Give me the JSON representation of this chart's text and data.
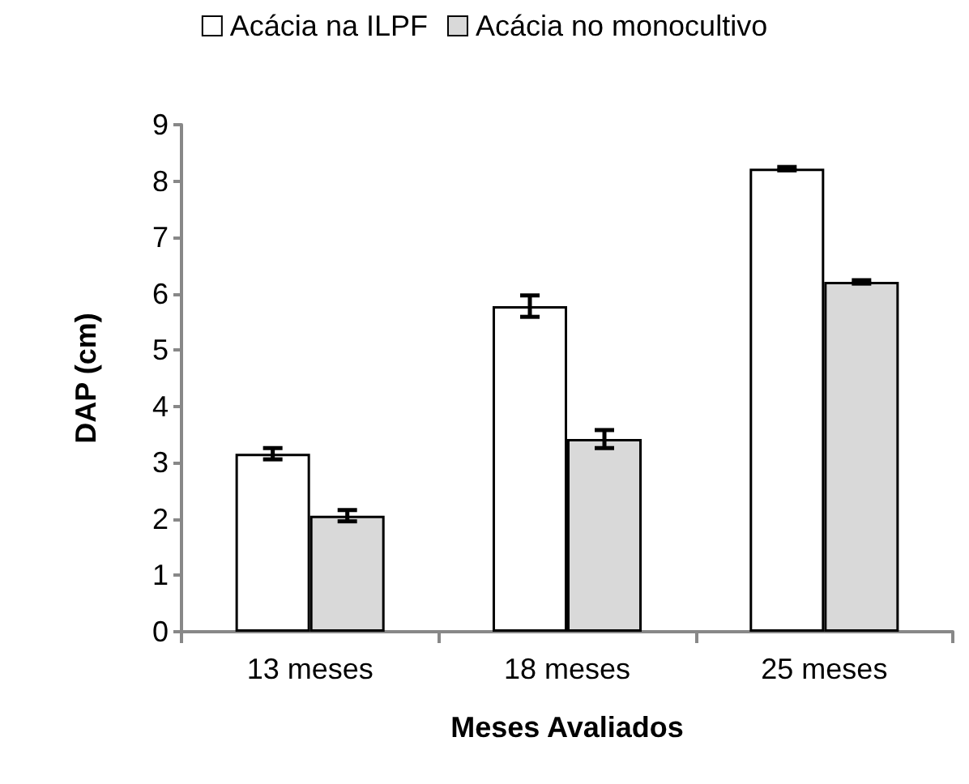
{
  "chart_data": {
    "type": "bar",
    "xlabel": "Meses Avaliados",
    "ylabel": "DAP (cm)",
    "categories": [
      "13 meses",
      "18 meses",
      "25 meses"
    ],
    "series": [
      {
        "name": "Acácia na ILPF",
        "color": "#ffffff",
        "values": [
          3.16,
          5.78,
          8.22
        ],
        "errors": [
          0.1,
          0.19,
          0.03
        ]
      },
      {
        "name": "Acácia no monocultivo",
        "color": "#d9d9d9",
        "values": [
          2.06,
          3.42,
          6.21
        ],
        "errors": [
          0.1,
          0.16,
          0.03
        ]
      }
    ],
    "ylim": [
      0,
      9
    ],
    "yticks": [
      0,
      1,
      2,
      3,
      4,
      5,
      6,
      7,
      8,
      9
    ],
    "grid": false,
    "legend": "top"
  }
}
